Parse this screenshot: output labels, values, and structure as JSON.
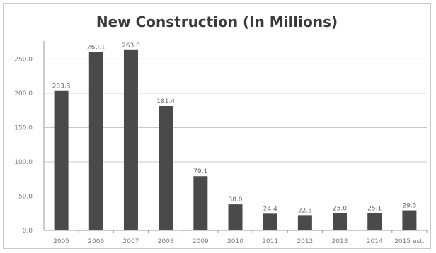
{
  "chart_data": {
    "type": "bar",
    "title": "New Construction (In Millions)",
    "xlabel": "",
    "ylabel": "",
    "categories": [
      "2005",
      "2006",
      "2007",
      "2008",
      "2009",
      "2010",
      "2011",
      "2012",
      "2013",
      "2014",
      "2015 est."
    ],
    "values": [
      203.3,
      260.1,
      263.0,
      181.4,
      79.1,
      38.0,
      24.4,
      22.3,
      25.0,
      25.1,
      29.3
    ],
    "value_labels": [
      "203.3",
      "260.1",
      "263.0",
      "181.4",
      "79.1",
      "38.0",
      "24.4",
      "22.3",
      "25.0",
      "25.1",
      "29.3"
    ],
    "ylim": [
      0,
      270
    ],
    "yticks": [
      0,
      50,
      100,
      150,
      200,
      250
    ],
    "ytick_labels": [
      "0.0",
      "50.0",
      "100.0",
      "150.0",
      "200.0",
      "250.0"
    ],
    "grid": true,
    "legend": "none",
    "colors": {
      "bar": "#4a4a4a",
      "grid": "#c8c8c8",
      "axis": "#9a9a9a"
    }
  }
}
